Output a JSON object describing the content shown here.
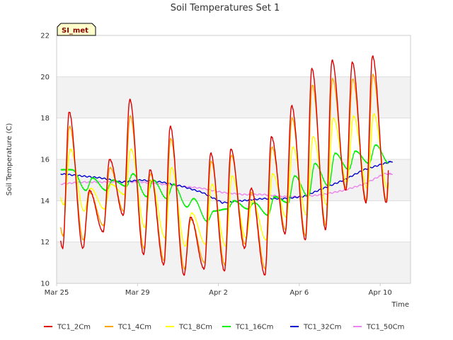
{
  "chart_data": {
    "type": "line",
    "title": "Soil Temperatures Set 1",
    "xlabel": "Time",
    "ylabel": "Soil Temperature (C)",
    "ylim": [
      10,
      22
    ],
    "yticks": [
      10,
      12,
      14,
      16,
      18,
      20,
      22
    ],
    "xlim": [
      "Mar 25",
      "Apr 11 12:00"
    ],
    "xticks": [
      "Mar 25",
      "Mar 29",
      "Apr 2",
      "Apr 6",
      "Apr 10"
    ],
    "grid": "horizontal bands",
    "legend_position": "bottom",
    "badge": "SI_met",
    "series": [
      {
        "name": "TC1_2Cm",
        "color": "#dd0000",
        "lows": [
          11.7,
          11.7,
          12.5,
          13.3,
          11.4,
          10.9,
          10.4,
          10.7,
          10.6,
          11.7,
          10.4,
          12.4,
          12.1,
          12.6,
          14.5,
          13.9
        ],
        "highs": [
          18.3,
          14.5,
          16.0,
          18.9,
          15.5,
          17.6,
          13.2,
          16.3,
          16.5,
          14.6,
          17.1,
          18.6,
          20.4,
          20.8,
          20.7,
          21.0
        ]
      },
      {
        "name": "TC1_4Cm",
        "color": "#ffa500",
        "lows": [
          12.3,
          12.1,
          12.8,
          13.5,
          11.7,
          11.1,
          10.7,
          11.0,
          10.9,
          11.9,
          10.7,
          12.6,
          12.3,
          12.8,
          14.6,
          14.0
        ],
        "highs": [
          17.6,
          14.4,
          15.6,
          18.1,
          15.3,
          17.0,
          13.1,
          15.9,
          16.2,
          14.4,
          16.6,
          18.0,
          19.6,
          19.9,
          19.9,
          20.1
        ]
      },
      {
        "name": "TC1_8Cm",
        "color": "#ffff00",
        "lows": [
          13.8,
          13.5,
          13.6,
          14.3,
          12.7,
          12.2,
          11.8,
          11.9,
          11.8,
          12.2,
          12.1,
          13.2,
          13.3,
          13.8,
          14.9,
          14.6
        ],
        "highs": [
          16.5,
          14.6,
          14.8,
          16.5,
          15.0,
          15.6,
          13.4,
          14.8,
          15.2,
          14.0,
          15.3,
          16.6,
          17.1,
          18.0,
          18.1,
          18.2
        ]
      },
      {
        "name": "TC1_16Cm",
        "color": "#00ee00",
        "lows": [
          15.5,
          14.5,
          14.5,
          14.7,
          14.2,
          14.1,
          13.7,
          13.0,
          13.6,
          13.6,
          13.3,
          13.9,
          14.2,
          14.7,
          15.5,
          15.8
        ],
        "highs": [
          15.5,
          15.1,
          15.0,
          15.3,
          15.0,
          14.8,
          14.1,
          13.5,
          14.0,
          13.9,
          14.2,
          15.2,
          15.8,
          16.3,
          16.4,
          16.7
        ]
      },
      {
        "name": "TC1_32Cm",
        "color": "#0000cc",
        "points": [
          [
            0,
            15.3
          ],
          [
            1,
            15.2
          ],
          [
            2,
            15.1
          ],
          [
            3,
            14.9
          ],
          [
            4,
            15.0
          ],
          [
            5,
            14.9
          ],
          [
            6,
            14.7
          ],
          [
            7,
            14.4
          ],
          [
            8,
            13.9
          ],
          [
            9,
            14.0
          ],
          [
            10,
            14.1
          ],
          [
            11,
            14.1
          ],
          [
            12,
            14.2
          ],
          [
            13,
            14.6
          ],
          [
            14,
            15.0
          ],
          [
            15,
            15.5
          ],
          [
            16,
            15.8
          ],
          [
            16.4,
            15.9
          ]
        ]
      },
      {
        "name": "TC1_50Cm",
        "color": "#ee82ee",
        "points": [
          [
            0,
            14.8
          ],
          [
            1,
            14.9
          ],
          [
            2,
            14.9
          ],
          [
            3,
            14.9
          ],
          [
            4,
            14.9
          ],
          [
            5,
            14.8
          ],
          [
            6,
            14.7
          ],
          [
            7,
            14.6
          ],
          [
            8,
            14.4
          ],
          [
            9,
            14.3
          ],
          [
            10,
            14.3
          ],
          [
            11,
            14.2
          ],
          [
            12,
            14.2
          ],
          [
            13,
            14.3
          ],
          [
            14,
            14.5
          ],
          [
            15,
            14.8
          ],
          [
            16,
            15.3
          ],
          [
            16.4,
            15.3
          ]
        ]
      }
    ]
  }
}
